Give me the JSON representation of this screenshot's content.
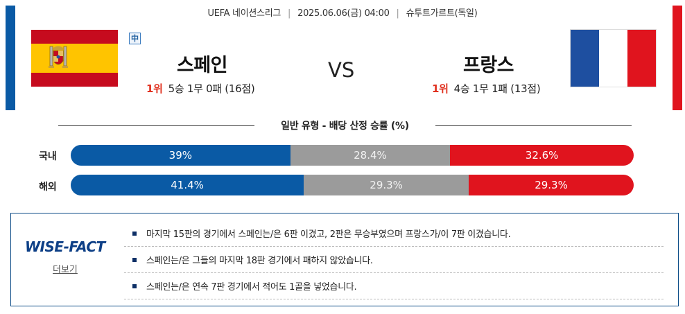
{
  "match": {
    "league": "UEFA 네이션스리그",
    "datetime": "2025.06.06(금) 04:00",
    "venue": "슈투트가르트(독일)"
  },
  "home": {
    "name": "스페인",
    "rank": "1위",
    "record": "5승 1무 0패 (16점)",
    "color": "#0a5aa5"
  },
  "away": {
    "name": "프랑스",
    "rank": "1위",
    "record": "4승 1무 1패 (13점)",
    "color": "#e0141e"
  },
  "badge": "中",
  "vs": "VS",
  "odds_section": {
    "title": "일반 유형 - 배당 산정 승률 (%)",
    "rows": [
      {
        "label": "국내",
        "win": 39,
        "draw": 28.4,
        "lose": 32.6,
        "win_text": "39%",
        "draw_text": "28.4%",
        "lose_text": "32.6%"
      },
      {
        "label": "해외",
        "win": 41.4,
        "draw": 29.3,
        "lose": 29.3,
        "win_text": "41.4%",
        "draw_text": "29.3%",
        "lose_text": "29.3%"
      }
    ]
  },
  "wise_fact": {
    "logo": "WISE-FACT",
    "more_label": "더보기",
    "items": [
      "마지막 15판의 경기에서 스페인는/은 6판 이겼고, 2판은 무승부였으며 프랑스가/이 7판 이겼습니다.",
      "스페인는/은 그들의 마지막 18판 경기에서 패하지 않았습니다.",
      "스페인는/은 연속 7판 경기에서 적어도 1골을 넣었습니다."
    ]
  }
}
